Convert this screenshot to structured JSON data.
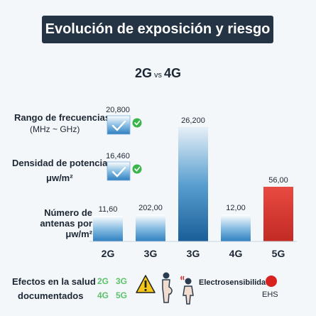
{
  "title": "Evolución de exposición y riesgo",
  "subtitle": {
    "left": "2G",
    "vs": "vs",
    "right": "4G"
  },
  "row_labels": {
    "freq": {
      "main": "Rango de frecuencias",
      "sub": "(MHz ~ GHz)"
    },
    "power": {
      "main": "Densidad de potencia",
      "sub": "μw/m²"
    },
    "antennas": {
      "main": "Número de",
      "line2": "antenas por  μw/m²"
    }
  },
  "chart_data": {
    "type": "bar",
    "title": "Evolución de exposición y riesgo",
    "categories": [
      "2G",
      "3G",
      "3G",
      "4G",
      "5G"
    ],
    "bars": [
      {
        "category": "2G",
        "value": 11.6,
        "label": "11,60",
        "color": "#3d8fc9"
      },
      {
        "category": "3G",
        "value": 202.0,
        "label": "202,00",
        "color": "#3d8fc9"
      },
      {
        "category": "3G",
        "value": 26200,
        "label": "26,200",
        "color": "#1f6aa8"
      },
      {
        "category": "4G",
        "value": 12.0,
        "label": "12,00",
        "color": "#3d8fc9"
      },
      {
        "category": "5G",
        "value": 56.0,
        "label": "56,00",
        "color": "#e03a33"
      }
    ],
    "small_boxes": [
      {
        "label": "20,800",
        "value": 20800,
        "icon": "check-icon"
      },
      {
        "label": "16,460",
        "value": 16460,
        "icon": "check-icon"
      }
    ]
  },
  "effects": {
    "label_line1": "Efectos en la salud",
    "label_line2": "documentados",
    "gens": [
      "2G",
      "3G",
      "4G",
      "5G"
    ],
    "ehs_label": "Electrosensibilidad",
    "ehs_abbr": "EHS",
    "icons": [
      "warning-icon",
      "pregnant-woman-icon",
      "child-icon"
    ]
  },
  "colors": {
    "accent_dark": "#243444",
    "bar_blue": "#3d8fc9",
    "bar_red": "#e03a33",
    "check_green": "#39b54a"
  }
}
